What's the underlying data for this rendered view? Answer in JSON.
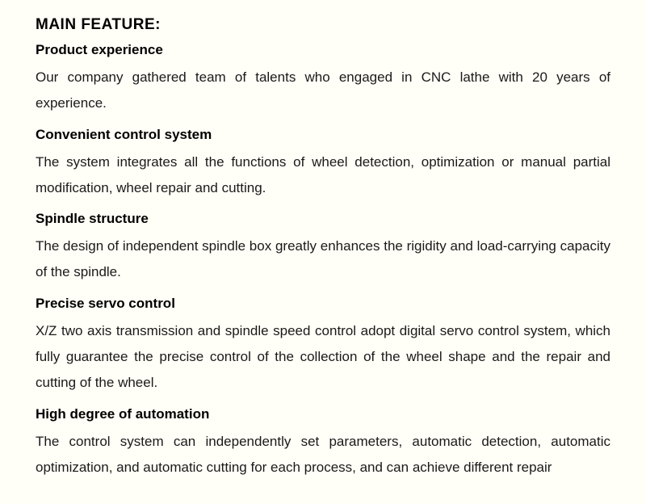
{
  "document": {
    "title": "MAIN FEATURE:",
    "title_fontsize": 19,
    "title_fontweight": "bold",
    "background_color": "#fffef7",
    "text_color": "#000000",
    "body_fontsize": 17,
    "line_height": 1.9,
    "text_align": "justify",
    "features": [
      {
        "heading": "Product experience",
        "text": "Our company gathered team of talents who engaged in CNC lathe with 20 years of experience."
      },
      {
        "heading": "Convenient control system",
        "text": "The system integrates all the functions of wheel detection, optimization or manual partial modification, wheel repair and cutting."
      },
      {
        "heading": "Spindle structure",
        "text": "The design of independent spindle box greatly enhances the rigidity and load-carrying capacity of the spindle."
      },
      {
        "heading": "Precise servo control",
        "text": "X/Z two axis transmission and spindle speed control adopt digital servo control system, which fully guarantee the precise control of the collection of the wheel shape and the repair and cutting of the wheel."
      },
      {
        "heading": "High degree of automation",
        "text": "The control system can independently set parameters, automatic detection, automatic optimization, and automatic cutting for each process, and can achieve different repair"
      }
    ]
  }
}
